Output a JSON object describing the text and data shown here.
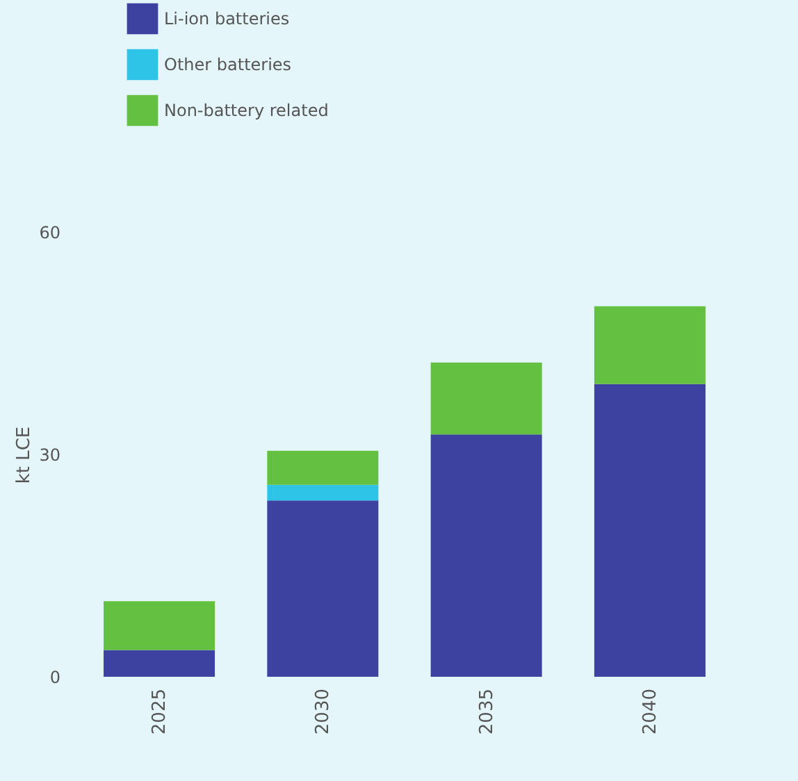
{
  "chart_data": {
    "type": "bar",
    "stacked": true,
    "ylabel": "kt LCE",
    "categories": [
      "2025",
      "2030",
      "2035",
      "2040"
    ],
    "series": [
      {
        "name": "Li-ion batteries",
        "color": "#3d42a0",
        "values": [
          3.6,
          23.8,
          32.7,
          39.5
        ]
      },
      {
        "name": "Other batteries",
        "color": "#2ec4e8",
        "values": [
          0,
          2.1,
          0,
          0
        ]
      },
      {
        "name": "Non-battery related",
        "color": "#63c040",
        "values": [
          6.6,
          4.6,
          9.7,
          10.5
        ]
      }
    ],
    "ylim": [
      0,
      60
    ],
    "yticks": [
      0,
      30,
      60
    ],
    "grid": false,
    "legend": "top left"
  }
}
